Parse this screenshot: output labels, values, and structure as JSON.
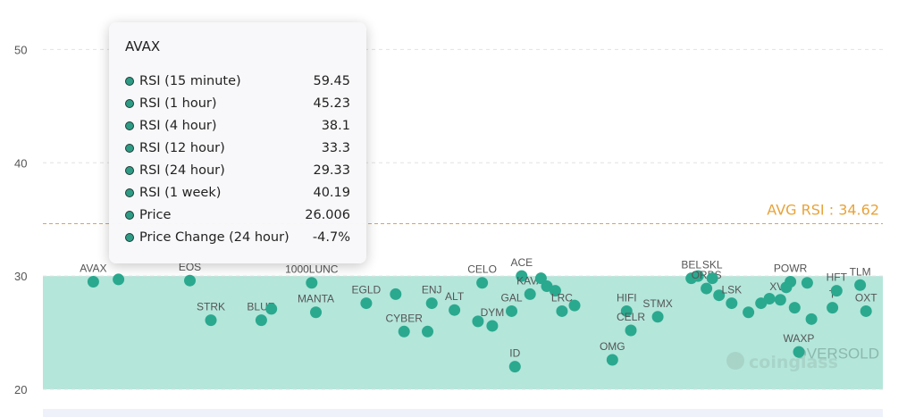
{
  "chart_data": {
    "type": "scatter",
    "ylim": [
      20,
      52
    ],
    "yticks": [
      20,
      30,
      40,
      50
    ],
    "avg_line": {
      "value": 34.62,
      "label": "AVG RSI : 34.62",
      "color": "#e8a33a"
    },
    "zone": {
      "from": 20,
      "to": 30,
      "label": "OVERSOLD",
      "color": "#b4e6da"
    },
    "point_color": "#2aa98f",
    "watermark": "coinglass",
    "points": [
      {
        "label": "AVAX",
        "x": 0.06,
        "y": 29.5
      },
      {
        "label": "",
        "x": 0.09,
        "y": 29.7
      },
      {
        "label": "EOS",
        "x": 0.175,
        "y": 29.6
      },
      {
        "label": "STRK",
        "x": 0.2,
        "y": 26.1
      },
      {
        "label": "BLUR",
        "x": 0.26,
        "y": 26.1
      },
      {
        "label": "",
        "x": 0.272,
        "y": 27.1
      },
      {
        "label": "1000LUNC",
        "x": 0.32,
        "y": 29.4
      },
      {
        "label": "MANTA",
        "x": 0.325,
        "y": 26.8
      },
      {
        "label": "EGLD",
        "x": 0.385,
        "y": 27.6
      },
      {
        "label": "",
        "x": 0.42,
        "y": 28.4
      },
      {
        "label": "CYBER",
        "x": 0.43,
        "y": 25.1
      },
      {
        "label": "",
        "x": 0.458,
        "y": 25.1
      },
      {
        "label": "ENJ",
        "x": 0.463,
        "y": 27.6
      },
      {
        "label": "ALT",
        "x": 0.49,
        "y": 27.0
      },
      {
        "label": "",
        "x": 0.518,
        "y": 26.0
      },
      {
        "label": "CELO",
        "x": 0.523,
        "y": 29.4
      },
      {
        "label": "DYM",
        "x": 0.535,
        "y": 25.6
      },
      {
        "label": "GAL",
        "x": 0.558,
        "y": 26.9
      },
      {
        "label": "ID",
        "x": 0.562,
        "y": 22.0
      },
      {
        "label": "ACE",
        "x": 0.57,
        "y": 30.0
      },
      {
        "label": "KAVA",
        "x": 0.58,
        "y": 28.4
      },
      {
        "label": "",
        "x": 0.593,
        "y": 29.8
      },
      {
        "label": "",
        "x": 0.6,
        "y": 29.1
      },
      {
        "label": "",
        "x": 0.61,
        "y": 28.7
      },
      {
        "label": "LRC",
        "x": 0.618,
        "y": 26.9
      },
      {
        "label": "",
        "x": 0.633,
        "y": 27.4
      },
      {
        "label": "OMG",
        "x": 0.678,
        "y": 22.6
      },
      {
        "label": "HIFI",
        "x": 0.695,
        "y": 26.9
      },
      {
        "label": "CELR",
        "x": 0.7,
        "y": 25.2
      },
      {
        "label": "STMX",
        "x": 0.732,
        "y": 26.4
      },
      {
        "label": "BEL",
        "x": 0.772,
        "y": 29.8
      },
      {
        "label": "",
        "x": 0.78,
        "y": 30.0
      },
      {
        "label": "ORBS",
        "x": 0.79,
        "y": 28.9
      },
      {
        "label": "SKL",
        "x": 0.797,
        "y": 29.8
      },
      {
        "label": "",
        "x": 0.805,
        "y": 28.3
      },
      {
        "label": "LSK",
        "x": 0.82,
        "y": 27.6
      },
      {
        "label": "",
        "x": 0.84,
        "y": 26.8
      },
      {
        "label": "",
        "x": 0.855,
        "y": 27.6
      },
      {
        "label": "",
        "x": 0.865,
        "y": 28.0
      },
      {
        "label": "XVS",
        "x": 0.878,
        "y": 27.9
      },
      {
        "label": "",
        "x": 0.885,
        "y": 29.0
      },
      {
        "label": "POWR",
        "x": 0.89,
        "y": 29.5
      },
      {
        "label": "",
        "x": 0.895,
        "y": 27.2
      },
      {
        "label": "",
        "x": 0.91,
        "y": 29.4
      },
      {
        "label": "WAXP",
        "x": 0.9,
        "y": 23.3
      },
      {
        "label": "",
        "x": 0.915,
        "y": 26.2
      },
      {
        "label": "T",
        "x": 0.94,
        "y": 27.2
      },
      {
        "label": "HFT",
        "x": 0.945,
        "y": 28.7
      },
      {
        "label": "TLM",
        "x": 0.973,
        "y": 29.2
      },
      {
        "label": "OXT",
        "x": 0.98,
        "y": 26.9
      }
    ]
  },
  "tooltip": {
    "title": "AVAX",
    "rows": [
      {
        "label": "RSI (15 minute)",
        "value": "59.45"
      },
      {
        "label": "RSI (1 hour)",
        "value": "45.23"
      },
      {
        "label": "RSI (4 hour)",
        "value": "38.1"
      },
      {
        "label": "RSI (12 hour)",
        "value": "33.3"
      },
      {
        "label": "RSI (24 hour)",
        "value": "29.33"
      },
      {
        "label": "RSI (1 week)",
        "value": "40.19"
      },
      {
        "label": "Price",
        "value": "26.006"
      },
      {
        "label": "Price Change (24 hour)",
        "value": "-4.7%"
      }
    ]
  }
}
